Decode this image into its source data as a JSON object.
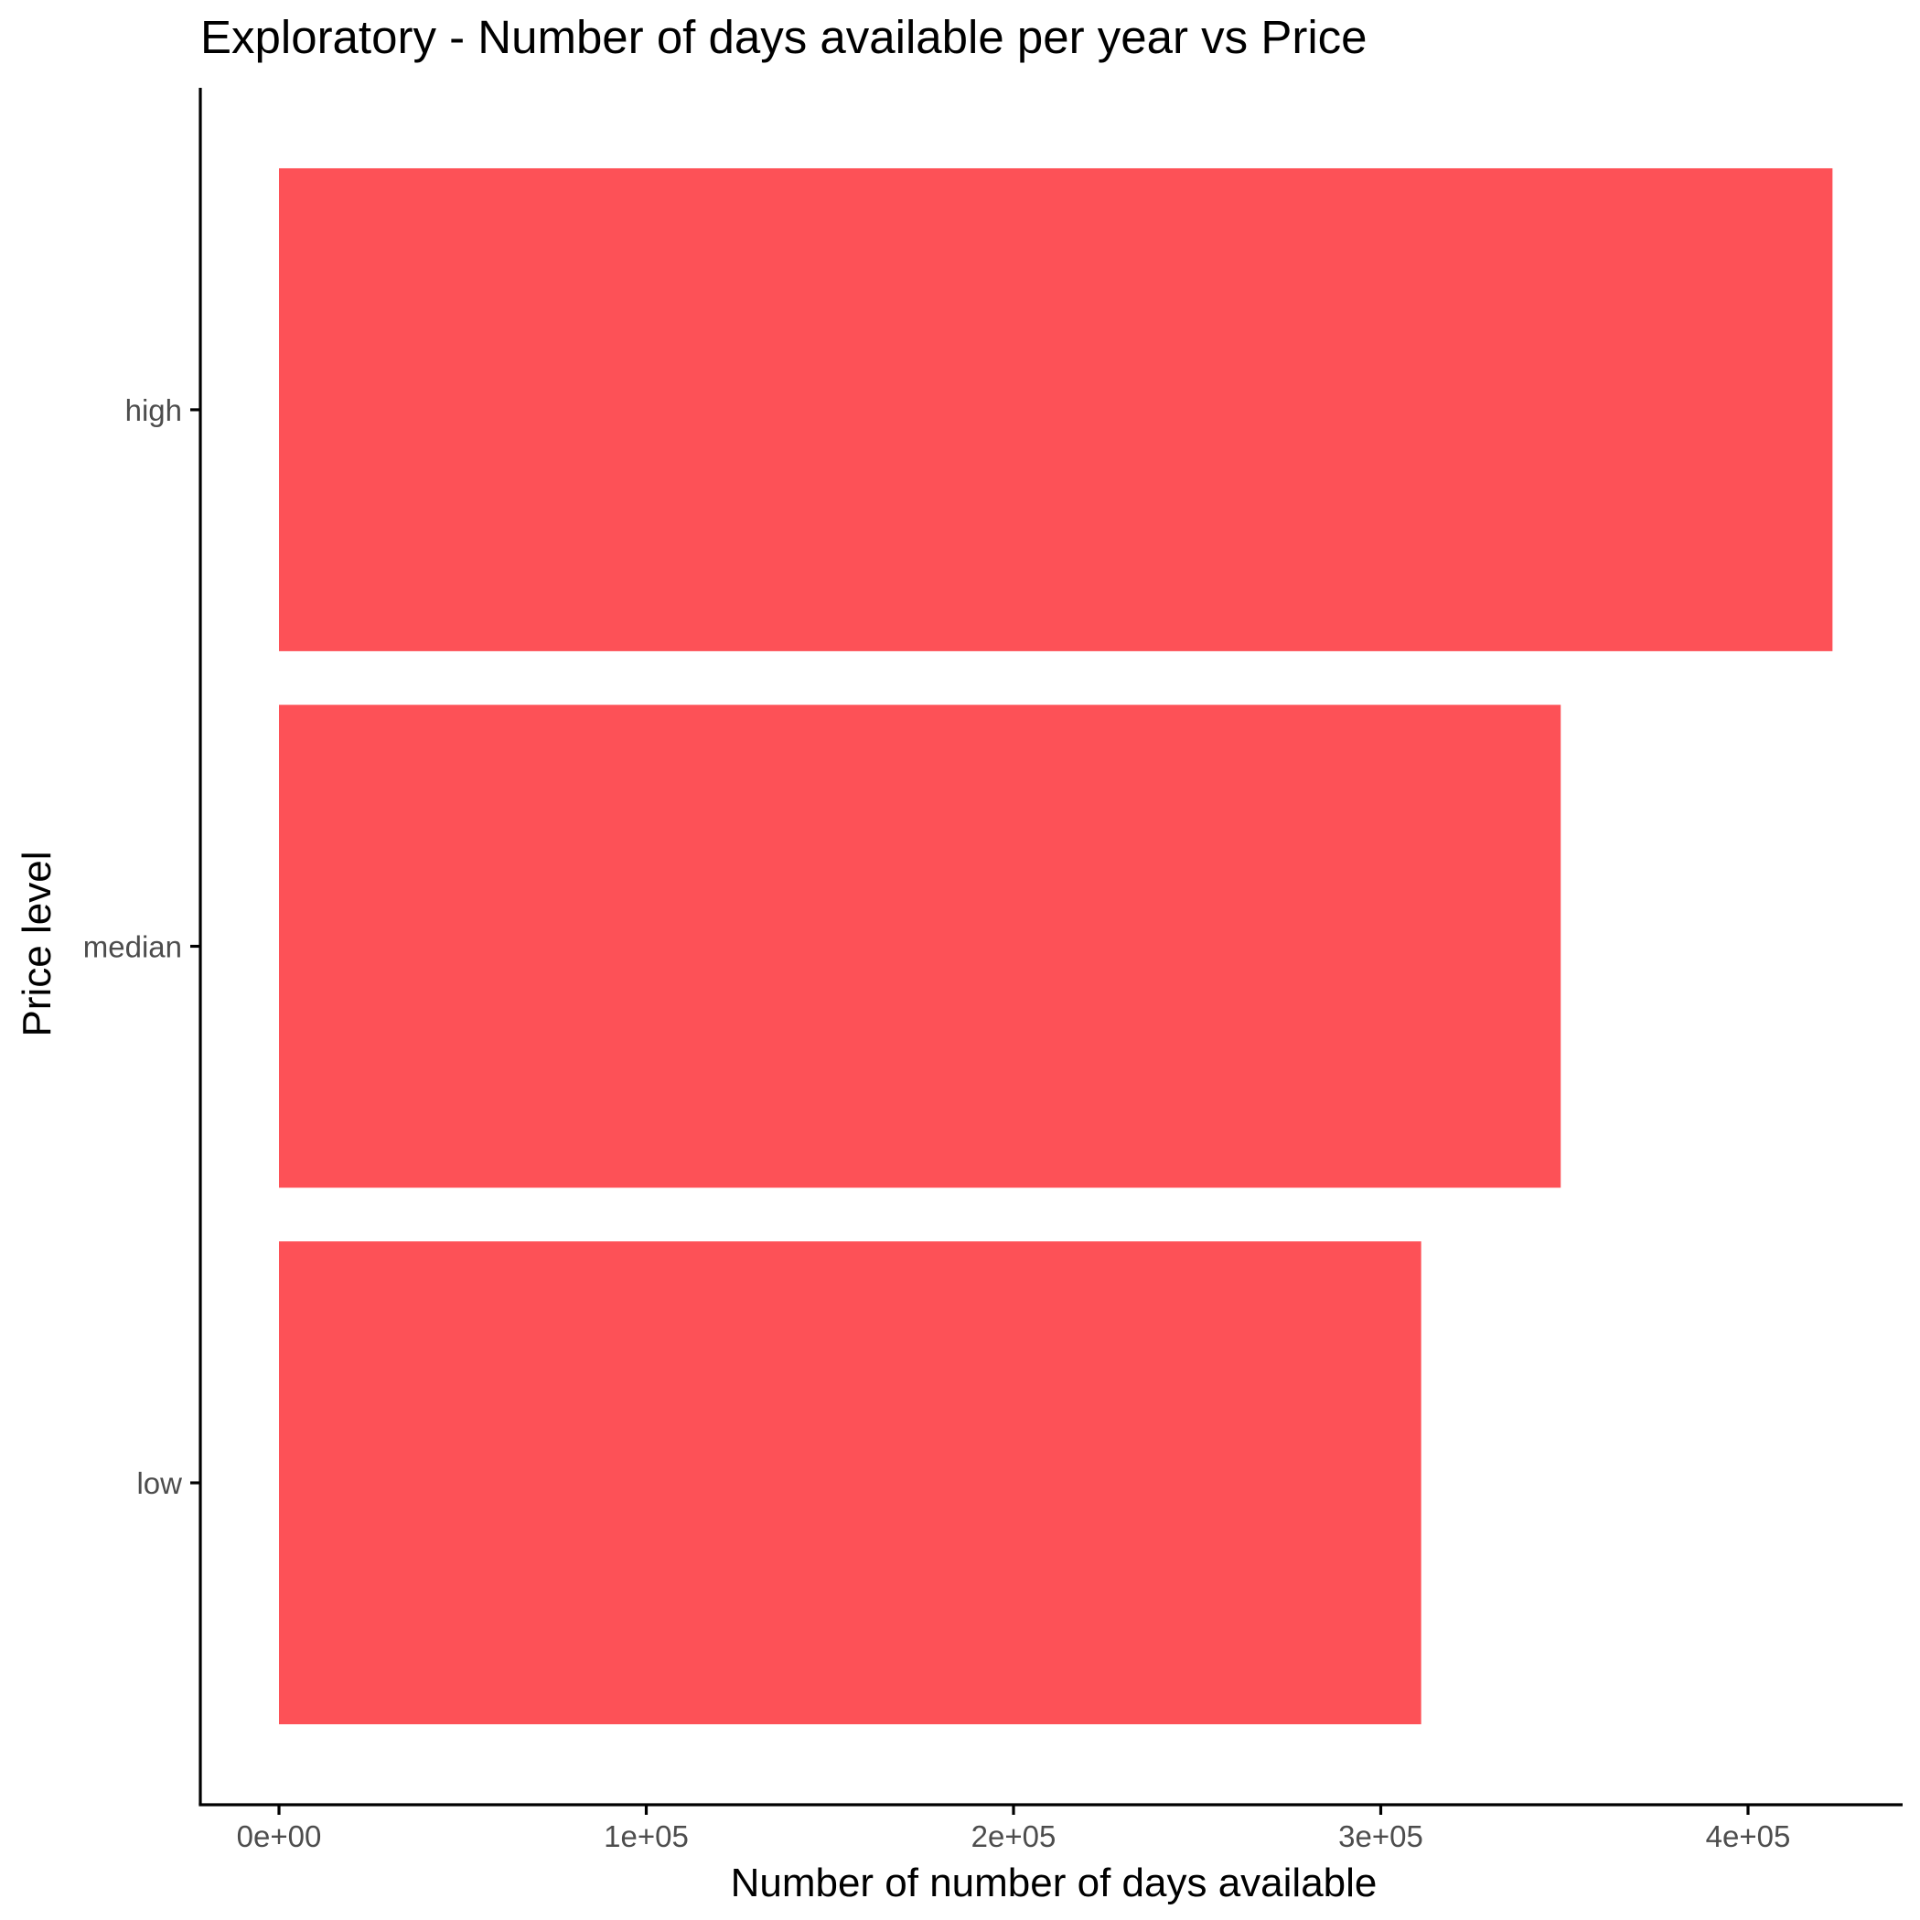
{
  "chart_data": {
    "type": "bar",
    "orientation": "horizontal",
    "title": "Exploratory - Number of days available per year vs Price",
    "xlabel": "Number of number of days available",
    "ylabel": "Price level",
    "categories": [
      "low",
      "median",
      "high"
    ],
    "values": [
      311000,
      349000,
      423000
    ],
    "xlim": [
      -21000,
      443000
    ],
    "xticks": [
      0,
      100000,
      200000,
      300000,
      400000
    ],
    "xtick_labels": [
      "0e+00",
      "1e+05",
      "2e+05",
      "3e+05",
      "4e+05"
    ],
    "grid": false,
    "legend": "none",
    "bar_color": "#fd5157"
  }
}
